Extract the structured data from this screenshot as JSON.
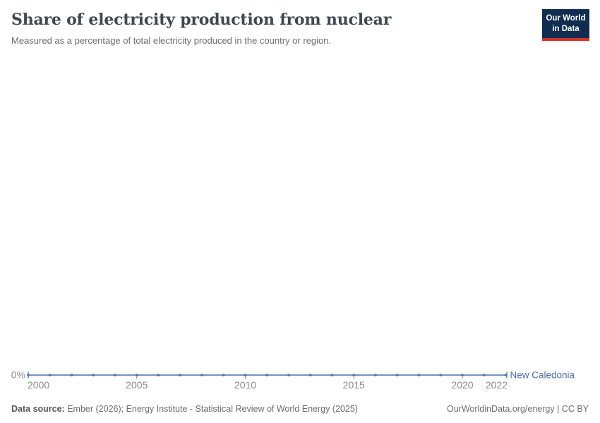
{
  "page": {
    "background": "#ffffff"
  },
  "logo": {
    "line1": "Our World",
    "line2": "in Data",
    "bg_color": "#102d50",
    "accent_color": "#d0342c"
  },
  "footer": {
    "data_source_label": "Data source:",
    "data_source_text": " Ember (2026); Energy Institute - Statistical Review of World Energy (2025)",
    "credit": "OurWorldinData.org/energy | CC BY"
  },
  "chart_data": {
    "type": "line",
    "title": "Share of electricity production from nuclear",
    "subtitle": "Measured as a percentage of total electricity produced in the country or region.",
    "x": [
      2000,
      2001,
      2002,
      2003,
      2004,
      2005,
      2006,
      2007,
      2008,
      2009,
      2010,
      2011,
      2012,
      2013,
      2014,
      2015,
      2016,
      2017,
      2018,
      2019,
      2020,
      2021,
      2022
    ],
    "series": [
      {
        "name": "New Caledonia",
        "color": "#4a70ad",
        "unit": "%",
        "values": [
          0,
          0,
          0,
          0,
          0,
          0,
          0,
          0,
          0,
          0,
          0,
          0,
          0,
          0,
          0,
          0,
          0,
          0,
          0,
          0,
          0,
          0,
          0
        ]
      }
    ],
    "x_ticks": [
      2000,
      2005,
      2010,
      2015,
      2020,
      2022
    ],
    "y_ticks": [
      {
        "value": 0,
        "label": "0%"
      }
    ],
    "y_axis": {
      "min": 0,
      "tick_labels": [
        "0%"
      ]
    },
    "grid": false,
    "legend_position": "right-of-line-end",
    "colors": {
      "line": "#4a70ad",
      "tick_text": "#8b8b8b",
      "axis_tick": "#7a8fb3"
    }
  }
}
